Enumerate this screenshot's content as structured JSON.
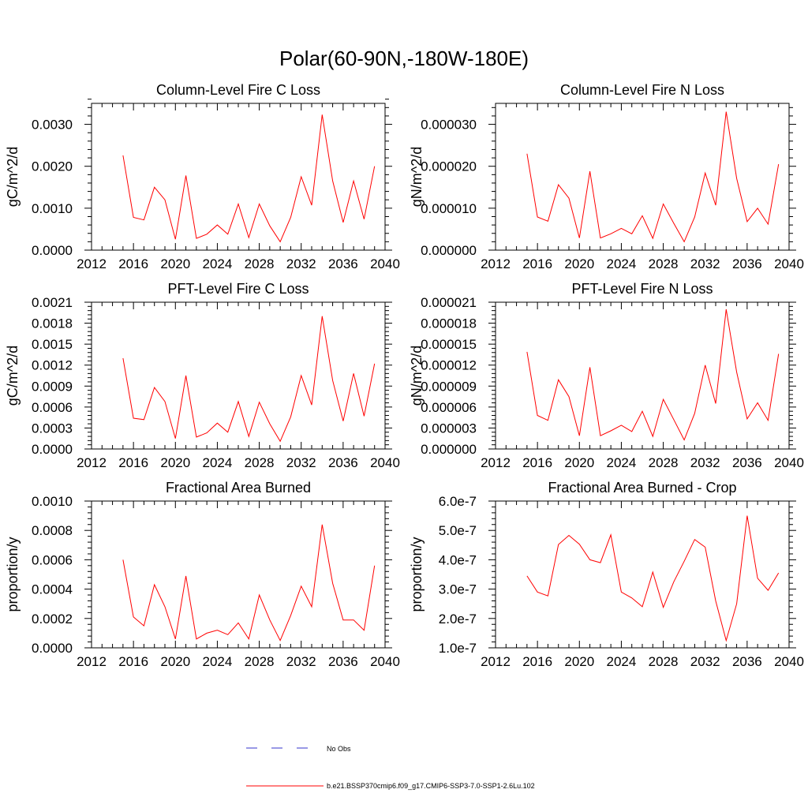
{
  "title": "Polar(60-90N,-180W-180E)",
  "colors": {
    "series": "#ff0000",
    "obs": "#3333cc",
    "axis": "#000000"
  },
  "legend": {
    "items": [
      {
        "label": "No Obs",
        "style": "dashed",
        "color": "#3333cc"
      },
      {
        "label": "b.e21.BSSP370cmip6.f09_g17.CMIP6-SSP3-7.0-SSP1-2.6Lu.102",
        "style": "solid",
        "color": "#ff0000"
      }
    ]
  },
  "chart_data": [
    {
      "type": "line",
      "title": "Column-Level Fire C Loss",
      "ylabel": "gC/m^2/d",
      "xlim": [
        2012,
        2040
      ],
      "ylim": [
        0,
        0.0035
      ],
      "xticks": [
        2012,
        2016,
        2020,
        2024,
        2028,
        2032,
        2036,
        2040
      ],
      "xtick_labels": [
        "2012",
        "2016",
        "2020",
        "2024",
        "2028",
        "2032",
        "2036",
        "2040"
      ],
      "yticks": [
        0,
        0.001,
        0.002,
        0.003
      ],
      "ytick_labels": [
        "0.0000",
        "0.0010",
        "0.0020",
        "0.0030"
      ],
      "x": [
        2015,
        2016,
        2017,
        2018,
        2019,
        2020,
        2021,
        2022,
        2023,
        2024,
        2025,
        2026,
        2027,
        2028,
        2029,
        2030,
        2031,
        2032,
        2033,
        2034,
        2035,
        2036,
        2037,
        2038,
        2039
      ],
      "series": [
        {
          "values": [
            0.00226,
            0.00078,
            0.00072,
            0.0015,
            0.0012,
            0.00026,
            0.00178,
            0.00028,
            0.00038,
            0.0006,
            0.00038,
            0.0011,
            0.0003,
            0.0011,
            0.00058,
            0.0002,
            0.00078,
            0.00175,
            0.00107,
            0.00323,
            0.00165,
            0.00066,
            0.00165,
            0.00074,
            0.002
          ]
        }
      ]
    },
    {
      "type": "line",
      "title": "Column-Level Fire N Loss",
      "ylabel": "gN/m^2/d",
      "xlim": [
        2012,
        2040
      ],
      "ylim": [
        0,
        3.5e-05
      ],
      "xticks": [
        2012,
        2016,
        2020,
        2024,
        2028,
        2032,
        2036,
        2040
      ],
      "xtick_labels": [
        "2012",
        "2016",
        "2020",
        "2024",
        "2028",
        "2032",
        "2036",
        "2040"
      ],
      "yticks": [
        0,
        1e-05,
        2e-05,
        3e-05
      ],
      "ytick_labels": [
        "0.000000",
        "0.000010",
        "0.000020",
        "0.000030"
      ],
      "x": [
        2015,
        2016,
        2017,
        2018,
        2019,
        2020,
        2021,
        2022,
        2023,
        2024,
        2025,
        2026,
        2027,
        2028,
        2029,
        2030,
        2031,
        2032,
        2033,
        2034,
        2035,
        2036,
        2037,
        2038,
        2039
      ],
      "series": [
        {
          "values": [
            2.3e-05,
            7.9e-06,
            6.9e-06,
            1.56e-05,
            1.24e-05,
            2.9e-06,
            1.88e-05,
            2.9e-06,
            3.9e-06,
            5.2e-06,
            3.9e-06,
            8.2e-06,
            2.8e-06,
            1.1e-05,
            6.4e-06,
            2e-06,
            7.9e-06,
            1.84e-05,
            1.07e-05,
            3.3e-05,
            1.71e-05,
            6.8e-06,
            1e-05,
            6.2e-06,
            2.05e-05
          ]
        }
      ]
    },
    {
      "type": "line",
      "title": "PFT-Level Fire C Loss",
      "ylabel": "gC/m^2/d",
      "xlim": [
        2012,
        2040
      ],
      "ylim": [
        0,
        0.0021
      ],
      "xticks": [
        2012,
        2016,
        2020,
        2024,
        2028,
        2032,
        2036,
        2040
      ],
      "xtick_labels": [
        "2012",
        "2016",
        "2020",
        "2024",
        "2028",
        "2032",
        "2036",
        "2040"
      ],
      "yticks": [
        0,
        0.0003,
        0.0006,
        0.0009,
        0.0012,
        0.0015,
        0.0018,
        0.0021
      ],
      "ytick_labels": [
        "0.0000",
        "0.0003",
        "0.0006",
        "0.0009",
        "0.0012",
        "0.0015",
        "0.0018",
        "0.0021"
      ],
      "x": [
        2015,
        2016,
        2017,
        2018,
        2019,
        2020,
        2021,
        2022,
        2023,
        2024,
        2025,
        2026,
        2027,
        2028,
        2029,
        2030,
        2031,
        2032,
        2033,
        2034,
        2035,
        2036,
        2037,
        2038,
        2039
      ],
      "series": [
        {
          "values": [
            0.0013,
            0.00044,
            0.00042,
            0.00088,
            0.00068,
            0.00015,
            0.00105,
            0.00017,
            0.00023,
            0.00037,
            0.00024,
            0.00068,
            0.00018,
            0.00067,
            0.00036,
            0.00011,
            0.00046,
            0.00105,
            0.00063,
            0.0019,
            0.00098,
            0.0004,
            0.00108,
            0.00047,
            0.00122
          ]
        }
      ]
    },
    {
      "type": "line",
      "title": "PFT-Level Fire N Loss",
      "ylabel": "gN/m^2/d",
      "xlim": [
        2012,
        2040
      ],
      "ylim": [
        0,
        2.1e-05
      ],
      "xticks": [
        2012,
        2016,
        2020,
        2024,
        2028,
        2032,
        2036,
        2040
      ],
      "xtick_labels": [
        "2012",
        "2016",
        "2020",
        "2024",
        "2028",
        "2032",
        "2036",
        "2040"
      ],
      "yticks": [
        0,
        3e-06,
        6e-06,
        9e-06,
        1.2e-05,
        1.5e-05,
        1.8e-05,
        2.1e-05
      ],
      "ytick_labels": [
        "0.000000",
        "0.000003",
        "0.000006",
        "0.000009",
        "0.000012",
        "0.000015",
        "0.000018",
        "0.000021"
      ],
      "x": [
        2015,
        2016,
        2017,
        2018,
        2019,
        2020,
        2021,
        2022,
        2023,
        2024,
        2025,
        2026,
        2027,
        2028,
        2029,
        2030,
        2031,
        2032,
        2033,
        2034,
        2035,
        2036,
        2037,
        2038,
        2039
      ],
      "series": [
        {
          "values": [
            1.39e-05,
            4.8e-06,
            4.1e-06,
            9.9e-06,
            7.5e-06,
            1.9e-06,
            1.17e-05,
            1.9e-06,
            2.6e-06,
            3.4e-06,
            2.5e-06,
            5.4e-06,
            1.8e-06,
            7.1e-06,
            4.2e-06,
            1.3e-06,
            5.1e-06,
            1.2e-05,
            6.5e-06,
            2e-05,
            1.1e-05,
            4.3e-06,
            6.6e-06,
            4.1e-06,
            1.36e-05
          ]
        }
      ]
    },
    {
      "type": "line",
      "title": "Fractional Area Burned",
      "ylabel": "proportion/y",
      "xlim": [
        2012,
        2040
      ],
      "ylim": [
        0,
        0.001
      ],
      "xticks": [
        2012,
        2016,
        2020,
        2024,
        2028,
        2032,
        2036,
        2040
      ],
      "xtick_labels": [
        "2012",
        "2016",
        "2020",
        "2024",
        "2028",
        "2032",
        "2036",
        "2040"
      ],
      "yticks": [
        0,
        0.0002,
        0.0004,
        0.0006,
        0.0008,
        0.001
      ],
      "ytick_labels": [
        "0.0000",
        "0.0002",
        "0.0004",
        "0.0006",
        "0.0008",
        "0.0010"
      ],
      "x": [
        2015,
        2016,
        2017,
        2018,
        2019,
        2020,
        2021,
        2022,
        2023,
        2024,
        2025,
        2026,
        2027,
        2028,
        2029,
        2030,
        2031,
        2032,
        2033,
        2034,
        2035,
        2036,
        2037,
        2038,
        2039
      ],
      "series": [
        {
          "values": [
            0.0006,
            0.00021,
            0.00015,
            0.00043,
            0.00028,
            6e-05,
            0.00049,
            6e-05,
            0.0001,
            0.00012,
            9e-05,
            0.00017,
            6e-05,
            0.00036,
            0.00019,
            5e-05,
            0.00022,
            0.00042,
            0.00028,
            0.00084,
            0.00044,
            0.00019,
            0.00019,
            0.00012,
            0.00056
          ]
        }
      ]
    },
    {
      "type": "line",
      "title": "Fractional Area Burned - Crop",
      "ylabel": "proportion/y",
      "xlim": [
        2012,
        2040
      ],
      "ylim": [
        1e-07,
        6e-07
      ],
      "xticks": [
        2012,
        2016,
        2020,
        2024,
        2028,
        2032,
        2036,
        2040
      ],
      "xtick_labels": [
        "2012",
        "2016",
        "2020",
        "2024",
        "2028",
        "2032",
        "2036",
        "2040"
      ],
      "yticks": [
        1e-07,
        2e-07,
        3e-07,
        4e-07,
        5e-07,
        6e-07
      ],
      "ytick_labels": [
        "1.0e-7",
        "2.0e-7",
        "3.0e-7",
        "4.0e-7",
        "5.0e-7",
        "6.0e-7"
      ],
      "x": [
        2015,
        2016,
        2017,
        2018,
        2019,
        2020,
        2021,
        2022,
        2023,
        2024,
        2025,
        2026,
        2027,
        2028,
        2029,
        2030,
        2031,
        2032,
        2033,
        2034,
        2035,
        2036,
        2037,
        2038,
        2039
      ],
      "series": [
        {
          "values": [
            3.45e-07,
            2.9e-07,
            2.77e-07,
            4.52e-07,
            4.83e-07,
            4.53e-07,
            4e-07,
            3.9e-07,
            4.85e-07,
            2.9e-07,
            2.7e-07,
            2.4e-07,
            3.58e-07,
            2.38e-07,
            3.25e-07,
            3.95e-07,
            4.69e-07,
            4.43e-07,
            2.6e-07,
            1.25e-07,
            2.5e-07,
            5.5e-07,
            3.37e-07,
            2.96e-07,
            3.55e-07
          ]
        }
      ]
    }
  ]
}
